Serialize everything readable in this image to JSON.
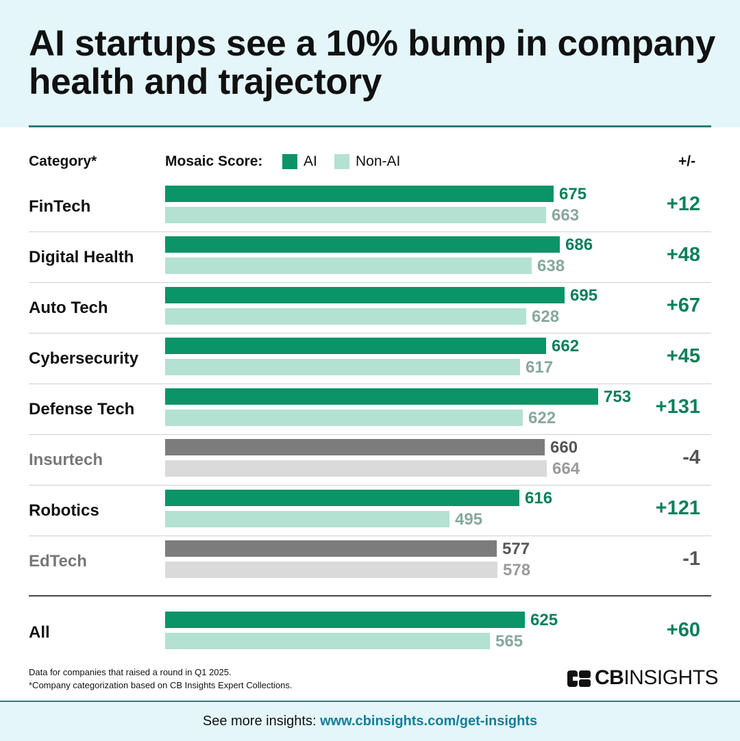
{
  "title": "AI startups see a 10% bump in company health and trajectory",
  "columns": {
    "category": "Category*",
    "score": "Mosaic Score:",
    "legend_ai": "AI",
    "legend_nonai": "Non-AI",
    "delta": "+/-"
  },
  "colors": {
    "ai": "#0a9468",
    "nonai": "#b3e1d2",
    "ai_neg": "#7c7c7c",
    "nonai_neg": "#dadada",
    "ai_text": "#0a7f5b",
    "nonai_text": "#86a89b",
    "neg_text": "#555555",
    "neg_label": "#777777"
  },
  "chart_data": {
    "type": "bar",
    "orientation": "horizontal",
    "title": "AI startups see a 10% bump in company health and trajectory",
    "xlabel": "Mosaic Score",
    "categories": [
      "FinTech",
      "Digital Health",
      "Auto Tech",
      "Cybersecurity",
      "Defense Tech",
      "Insurtech",
      "Robotics",
      "EdTech",
      "All"
    ],
    "series": [
      {
        "name": "AI",
        "values": [
          675,
          686,
          695,
          662,
          753,
          660,
          616,
          577,
          625
        ]
      },
      {
        "name": "Non-AI",
        "values": [
          663,
          638,
          628,
          617,
          622,
          664,
          495,
          578,
          565
        ]
      }
    ],
    "delta_labels": [
      "+12",
      "+48",
      "+67",
      "+45",
      "+131",
      "-4",
      "+121",
      "-1",
      "+60"
    ],
    "negative": [
      false,
      false,
      false,
      false,
      false,
      true,
      false,
      true,
      false
    ],
    "xlim": [
      0,
      753
    ]
  },
  "footnotes": [
    "Data for companies that raised a round in Q1 2025.",
    "*Company categorization based on CB Insights Expert Collections."
  ],
  "logo": {
    "bold": "CB",
    "regular": "INSIGHTS",
    "icon": "cb-insights-logo-icon"
  },
  "footer": {
    "prefix": "See more insights:",
    "link": "www.cbinsights.com/get-insights"
  }
}
